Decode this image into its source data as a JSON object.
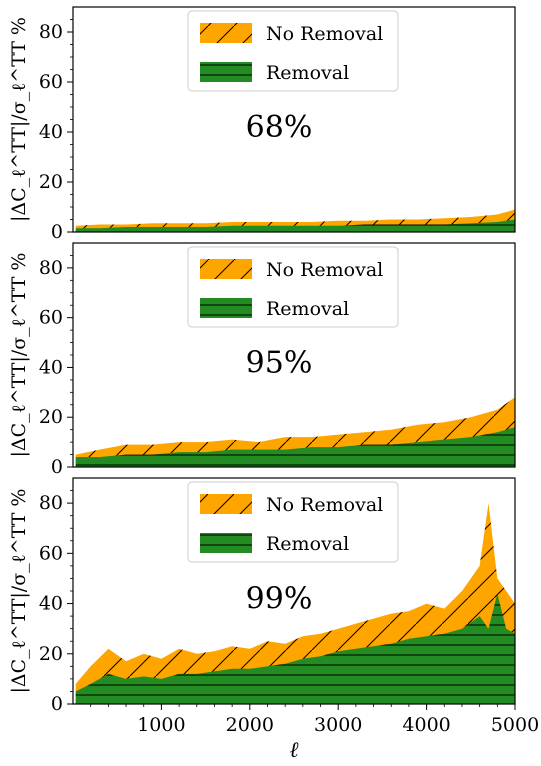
{
  "chart_data": {
    "type": "area",
    "xlabel": "ℓ",
    "ylabel": "|ΔC_ℓ^TT|/σ_ℓ^TT %",
    "xlim": [
      0,
      5000
    ],
    "ylim": [
      0,
      90
    ],
    "xticks": [
      1000,
      2000,
      3000,
      4000,
      5000
    ],
    "yticks": [
      0,
      20,
      40,
      60,
      80
    ],
    "legend_position": "top-center",
    "series_names": [
      "No Removal",
      "Removal"
    ],
    "colors": {
      "no_removal": "#FFA500",
      "removal": "#228B22"
    },
    "panels": [
      {
        "annotation": "68%",
        "x": [
          30,
          300,
          600,
          900,
          1200,
          1500,
          1800,
          2100,
          2400,
          2700,
          3000,
          3300,
          3600,
          3900,
          4200,
          4500,
          4800,
          5000
        ],
        "no_removal": [
          2.5,
          3,
          3,
          3.5,
          3.5,
          3.5,
          4,
          4,
          4,
          4,
          4.5,
          4.5,
          5,
          5,
          5.5,
          6,
          7,
          9
        ],
        "removal": [
          1.5,
          1.5,
          2,
          2,
          2,
          2,
          2.5,
          2.5,
          2.5,
          2.5,
          2.5,
          3,
          3,
          3,
          3,
          3.5,
          4,
          5
        ]
      },
      {
        "annotation": "95%",
        "x": [
          30,
          300,
          600,
          900,
          1200,
          1500,
          1800,
          2100,
          2400,
          2700,
          3000,
          3300,
          3600,
          3900,
          4200,
          4500,
          4800,
          5000
        ],
        "no_removal": [
          5,
          7,
          9,
          9,
          10,
          10,
          11,
          10,
          12,
          12,
          13,
          14,
          15,
          17,
          18,
          20,
          23,
          28
        ],
        "removal": [
          4,
          4,
          5,
          5,
          6,
          6,
          7,
          7,
          7,
          8,
          8,
          9,
          9,
          10,
          11,
          12,
          14,
          16
        ]
      },
      {
        "annotation": "99%",
        "x": [
          30,
          200,
          400,
          600,
          800,
          1000,
          1200,
          1400,
          1600,
          1800,
          2000,
          2200,
          2400,
          2600,
          2800,
          3000,
          3200,
          3400,
          3600,
          3800,
          4000,
          4200,
          4400,
          4600,
          4700,
          4800,
          4900,
          5000
        ],
        "no_removal": [
          8,
          15,
          22,
          17,
          20,
          18,
          22,
          20,
          21,
          23,
          22,
          25,
          24,
          27,
          28,
          30,
          32,
          34,
          36,
          37,
          40,
          38,
          45,
          55,
          80,
          50,
          45,
          40
        ],
        "removal": [
          5,
          8,
          12,
          10,
          11,
          10,
          12,
          12,
          13,
          14,
          14,
          15,
          16,
          18,
          19,
          21,
          22,
          23,
          24,
          26,
          27,
          28,
          30,
          35,
          30,
          44,
          30,
          28
        ]
      }
    ]
  }
}
